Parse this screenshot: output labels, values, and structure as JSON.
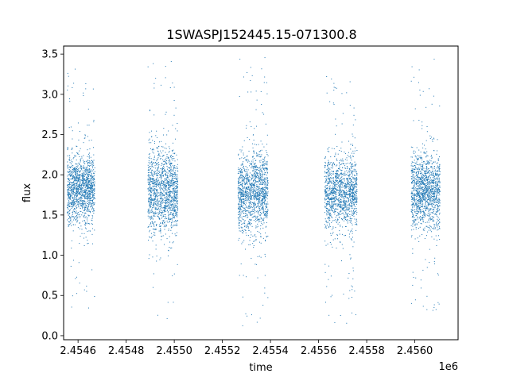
{
  "chart_data": {
    "type": "scatter",
    "title": "1SWASPJ152445.15-071300.8",
    "xlabel": "time",
    "ylabel": "flux",
    "x_offset_label": "1e6",
    "xlim": [
      2454540,
      2456180
    ],
    "ylim": [
      -0.05,
      3.6
    ],
    "x_ticks": [
      2454600,
      2454800,
      2455000,
      2455200,
      2455400,
      2455600,
      2455800,
      2456000
    ],
    "x_tick_labels": [
      "2.4546",
      "2.4548",
      "2.4550",
      "2.4552",
      "2.4554",
      "2.4556",
      "2.4558",
      "2.4560"
    ],
    "y_ticks": [
      0.0,
      0.5,
      1.0,
      1.5,
      2.0,
      2.5,
      3.0,
      3.5
    ],
    "y_tick_labels": [
      "0.0",
      "0.5",
      "1.0",
      "1.5",
      "2.0",
      "2.5",
      "3.0",
      "3.5"
    ],
    "grid": false,
    "marker_color": "#1f77b4",
    "series": [
      {
        "seasons": [
          {
            "x_range": [
              2454555,
              2454670
            ],
            "flux_center": 1.82,
            "flux_spread": 0.3,
            "flux_min": 0.3,
            "flux_max": 3.35
          },
          {
            "x_range": [
              2454890,
              2455015
            ],
            "flux_center": 1.78,
            "flux_spread": 0.38,
            "flux_min": 0.15,
            "flux_max": 3.45
          },
          {
            "x_range": [
              2455265,
              2455390
            ],
            "flux_center": 1.78,
            "flux_spread": 0.35,
            "flux_min": 0.12,
            "flux_max": 3.5
          },
          {
            "x_range": [
              2455625,
              2455760
            ],
            "flux_center": 1.8,
            "flux_spread": 0.32,
            "flux_min": 0.15,
            "flux_max": 3.25
          },
          {
            "x_range": [
              2455985,
              2456105
            ],
            "flux_center": 1.8,
            "flux_spread": 0.33,
            "flux_min": 0.3,
            "flux_max": 3.45
          }
        ]
      }
    ]
  }
}
